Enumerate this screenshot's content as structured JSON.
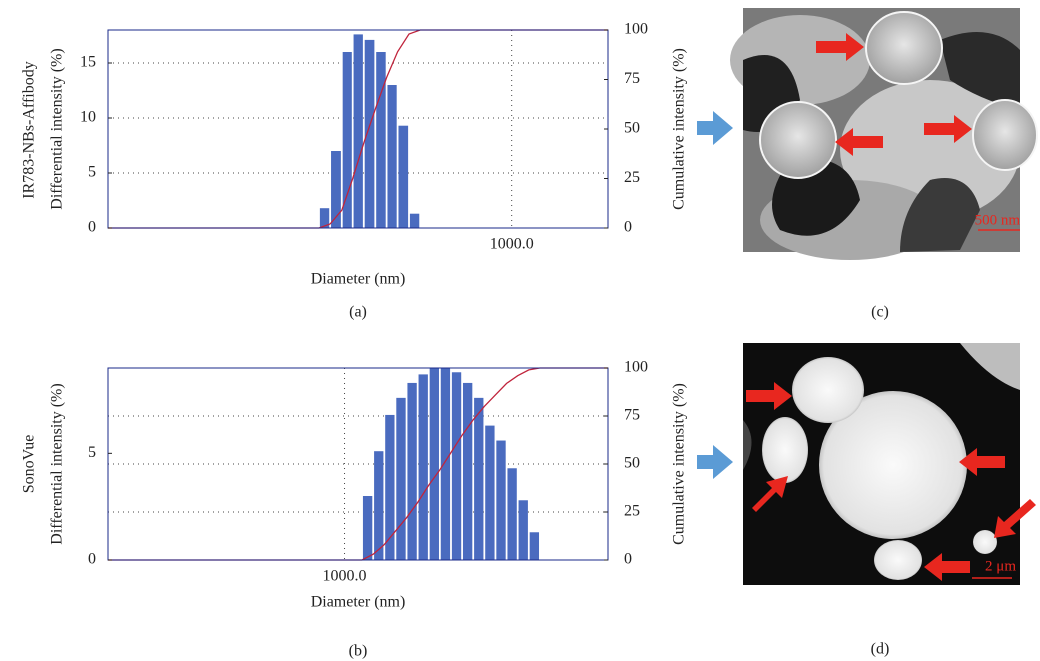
{
  "chart_data": [
    {
      "type": "histogram",
      "row_label": "IR783-NBs-Affibody",
      "panel": "(a)",
      "xlabel": "Diameter (nm)",
      "ylabel": "Differential intensity (%)",
      "y2label": "Cumulative intensity (%)",
      "xscale": "log",
      "xlim": [
        10,
        3000
      ],
      "xticks": [
        {
          "value": 1000,
          "label": "1000.0"
        }
      ],
      "ylim": [
        0,
        18
      ],
      "yticks": [
        0,
        5,
        10,
        15
      ],
      "y2lim": [
        0,
        100
      ],
      "y2ticks": [
        0,
        25,
        50,
        75,
        100
      ],
      "grid": "y",
      "color": "#4a6bbf",
      "bins": [
        111,
        126,
        144,
        163,
        185,
        211,
        240,
        272,
        310,
        352
      ],
      "values": [
        1.8,
        7,
        16,
        17.6,
        17.1,
        16,
        13,
        9.3,
        1.3
      ],
      "cumulative": {
        "axis": "y2",
        "color": "#c0243c",
        "x": [
          10,
          111,
          126,
          144,
          163,
          185,
          211,
          240,
          272,
          310,
          352,
          3000
        ],
        "values": [
          0,
          0,
          2,
          9,
          25,
          43,
          60,
          76,
          89,
          98,
          100,
          100
        ]
      }
    },
    {
      "type": "histogram",
      "row_label": "SonoVue",
      "panel": "(b)",
      "xlabel": "Diameter (nm)",
      "ylabel": "Differential intensity (%)",
      "y2label": "Cumulative intensity (%)",
      "xscale": "log",
      "xlim": [
        100,
        13000
      ],
      "xticks": [
        {
          "value": 1000,
          "label": "1000.0"
        }
      ],
      "ylim": [
        0,
        9
      ],
      "yticks": [
        0,
        5
      ],
      "y2lim": [
        0,
        100
      ],
      "y2ticks": [
        0,
        25,
        50,
        75,
        100
      ],
      "grid": "y2",
      "color": "#4a6bbf",
      "bins": [
        1186,
        1322,
        1473,
        1641,
        1829,
        2038,
        2271,
        2530,
        2819,
        3141,
        3500,
        3900,
        4346,
        4843,
        5396,
        6013,
        6700
      ],
      "values": [
        3.0,
        5.1,
        6.8,
        7.6,
        8.3,
        8.7,
        9.0,
        9.0,
        8.8,
        8.3,
        7.6,
        6.3,
        5.6,
        4.3,
        2.8,
        1.3
      ],
      "cumulative": {
        "axis": "y2",
        "color": "#c0243c",
        "x": [
          100,
          1186,
          1322,
          1473,
          1641,
          1829,
          2038,
          2271,
          2530,
          2819,
          3141,
          3500,
          3900,
          4346,
          4843,
          5396,
          6013,
          6700,
          13000
        ],
        "values": [
          0,
          0,
          3,
          8,
          15,
          22,
          30,
          39,
          47,
          56,
          65,
          73,
          80,
          86,
          92,
          96,
          99,
          100,
          100
        ]
      }
    }
  ],
  "images": [
    {
      "panel": "(c)",
      "scale_bar": "500 nm"
    },
    {
      "panel": "(d)",
      "scale_bar": "2 μm"
    }
  ]
}
